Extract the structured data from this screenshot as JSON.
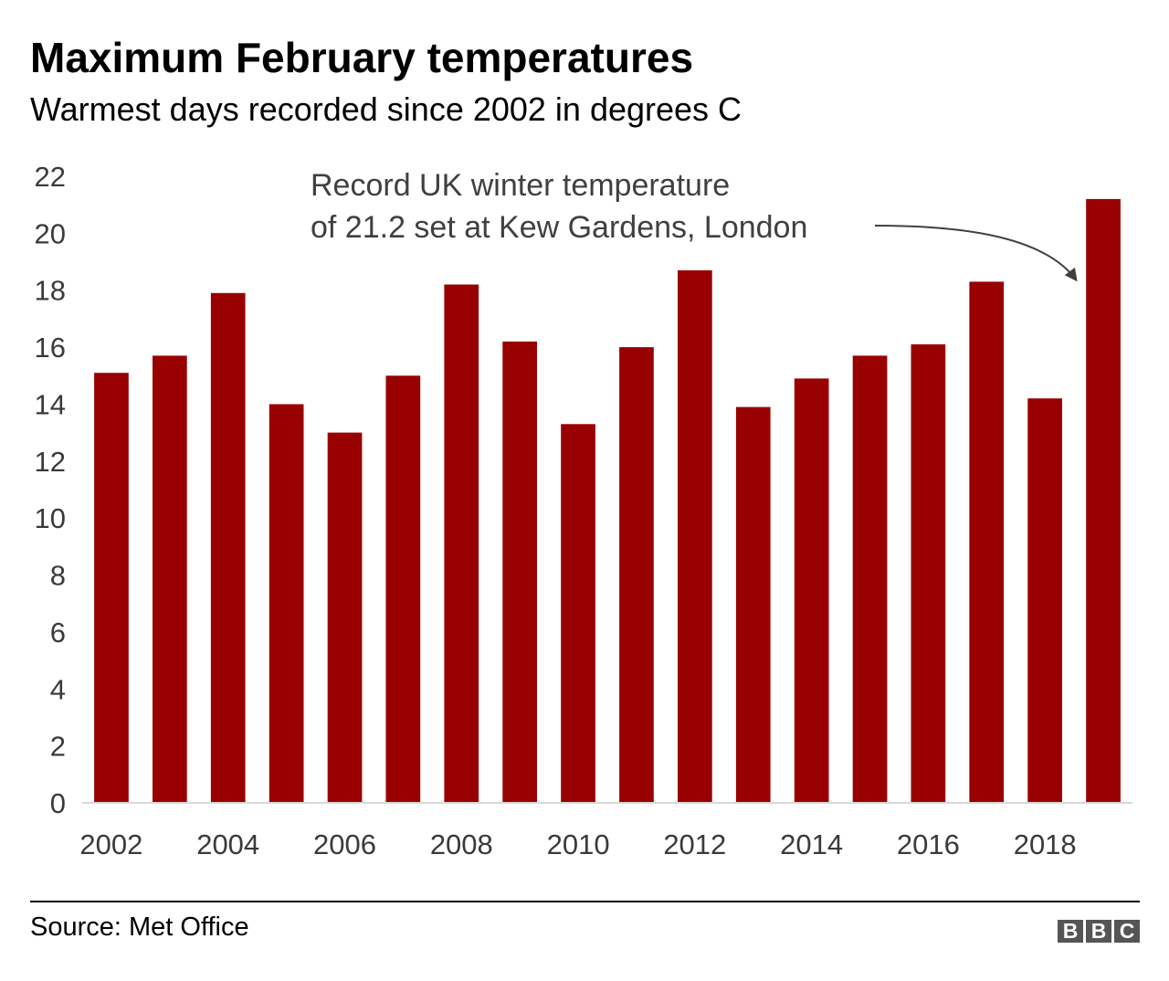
{
  "header": {
    "title": "Maximum February temperatures",
    "subtitle": "Warmest days recorded since 2002 in degrees C"
  },
  "annotation": {
    "line1": "Record UK winter temperature",
    "line2": "of 21.2 set at Kew Gardens, London"
  },
  "footer": {
    "source": "Source: Met Office",
    "logo_letters": [
      "B",
      "B",
      "C"
    ]
  },
  "colors": {
    "bar": "#990000",
    "axis": "#d9d9d9",
    "tick_text": "#3a3a3a",
    "annotation_text": "#404040",
    "logo_bg": "#555555"
  },
  "chart_data": {
    "type": "bar",
    "title": "Maximum February temperatures",
    "subtitle": "Warmest days recorded since 2002 in degrees C",
    "categories": [
      "2002",
      "2003",
      "2004",
      "2005",
      "2006",
      "2007",
      "2008",
      "2009",
      "2010",
      "2011",
      "2012",
      "2013",
      "2014",
      "2015",
      "2016",
      "2017",
      "2018",
      "2019"
    ],
    "x_tick_labels": [
      "2002",
      "2004",
      "2006",
      "2008",
      "2010",
      "2012",
      "2014",
      "2016",
      "2018"
    ],
    "values": [
      15.1,
      15.7,
      17.9,
      14.0,
      13.0,
      15.0,
      18.2,
      16.2,
      13.3,
      16.0,
      18.7,
      13.9,
      14.9,
      15.7,
      16.1,
      18.3,
      14.2,
      21.2
    ],
    "ylim": [
      0,
      22
    ],
    "y_ticks": [
      0,
      2,
      4,
      6,
      8,
      10,
      12,
      14,
      16,
      18,
      20,
      22
    ],
    "xlabel": "",
    "ylabel": "",
    "grid": false,
    "legend": "none"
  }
}
